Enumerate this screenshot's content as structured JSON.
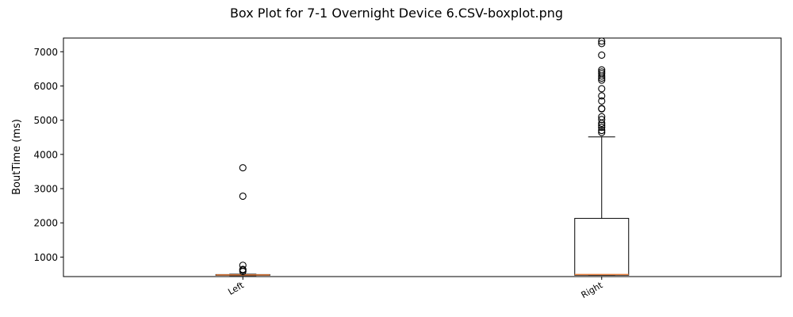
{
  "chart_data": {
    "type": "box",
    "title": "Box Plot for 7-1 Overnight Device 6.CSV-boxplot.png",
    "xlabel": "",
    "ylabel": "BoutTime (ms)",
    "categories": [
      "Left",
      "Right"
    ],
    "ylim": [
      430,
      7400
    ],
    "yticks": [
      1000,
      2000,
      3000,
      4000,
      5000,
      6000,
      7000
    ],
    "grid": false,
    "series": [
      {
        "category": "Left",
        "whisker_low": 460,
        "q1": 470,
        "median": 480,
        "q3": 490,
        "whisker_high": 500,
        "outliers": [
          580,
          620,
          640,
          760,
          2780,
          3610
        ]
      },
      {
        "category": "Right",
        "whisker_low": 470,
        "q1": 470,
        "median": 490,
        "q3": 2130,
        "whisker_high": 4510,
        "outliers": [
          4640,
          4700,
          4790,
          4850,
          4910,
          5020,
          5100,
          5330,
          5340,
          5560,
          5710,
          5920,
          6170,
          6230,
          6290,
          6360,
          6410,
          6470,
          6900,
          7240,
          7310
        ]
      }
    ],
    "colors": {
      "box": "#000000",
      "median": "#e8803f",
      "outlier": "#000000"
    }
  }
}
